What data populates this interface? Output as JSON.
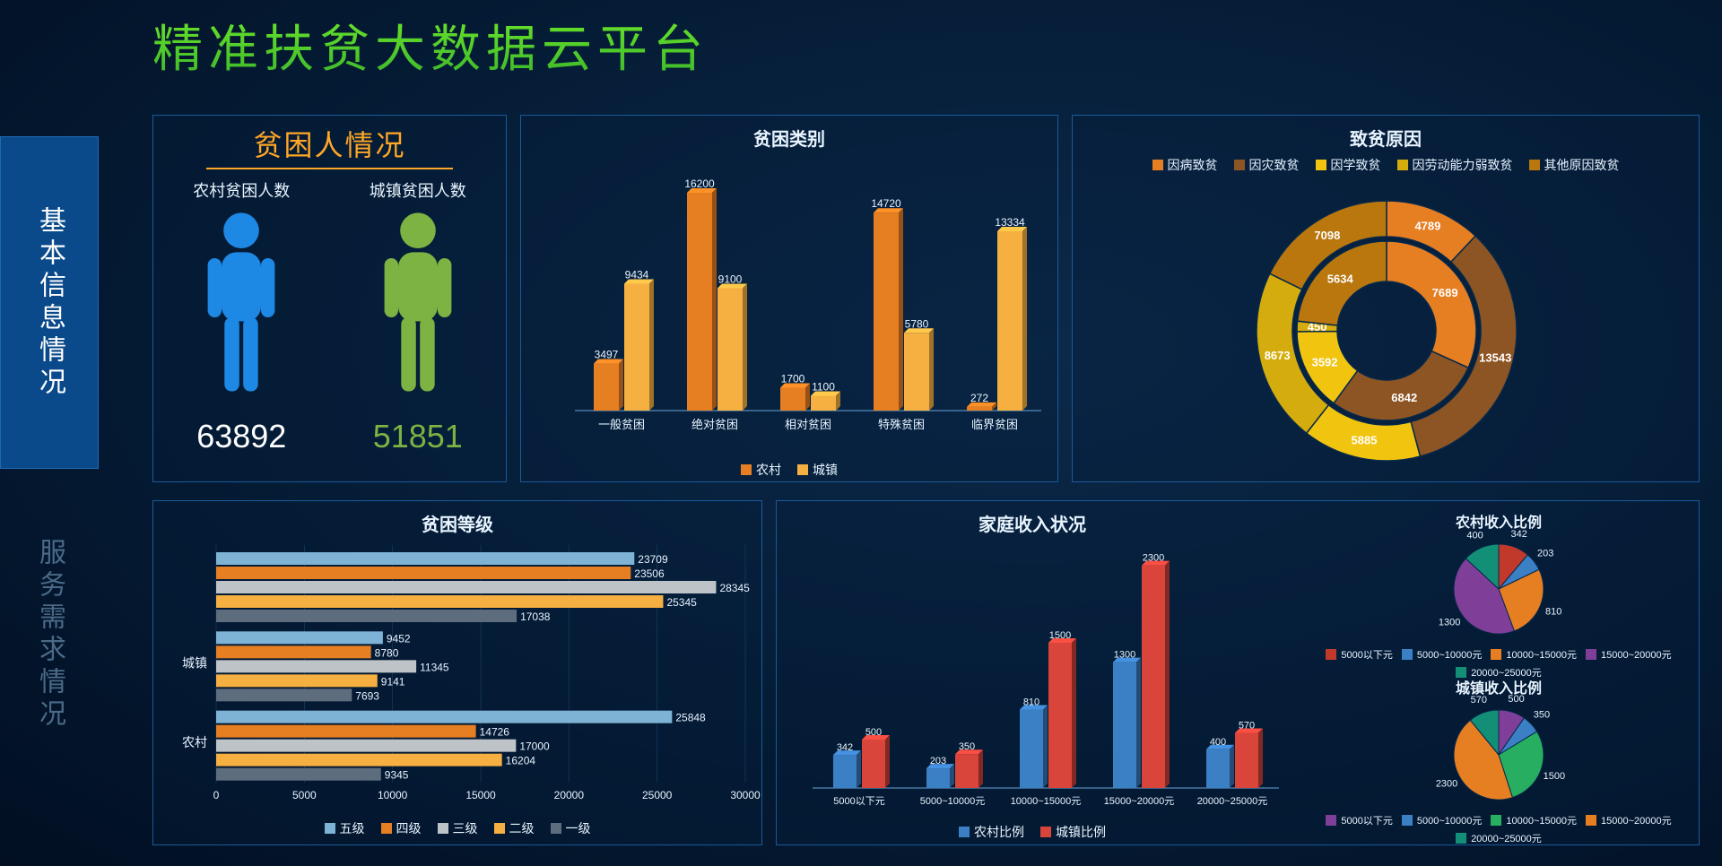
{
  "title": "精准扶贫大数据云平台",
  "sidebar": {
    "items": [
      {
        "label": "基本信息情况",
        "active": true
      },
      {
        "label": "服务需求情况",
        "active": false
      }
    ]
  },
  "population": {
    "title": "贫困人情况",
    "rural": {
      "label": "农村贫困人数",
      "value": 63892,
      "color": "#1e88e5",
      "text_color": "#ffffff"
    },
    "urban": {
      "label": "城镇贫困人数",
      "value": 51851,
      "color": "#7cb342",
      "text_color": "#7cb342"
    }
  },
  "category": {
    "title": "贫困类别",
    "type": "bar",
    "categories": [
      "一般贫困",
      "绝对贫困",
      "相对贫困",
      "特殊贫困",
      "临界贫困"
    ],
    "series": [
      {
        "name": "农村",
        "color": "#e67e22",
        "values": [
          3497,
          16200,
          1700,
          14720,
          272
        ]
      },
      {
        "name": "城镇",
        "color": "#f5b041",
        "values": [
          9434,
          9100,
          1100,
          5780,
          13334
        ]
      }
    ],
    "ymax": 18000,
    "label_fontsize": 12,
    "axis_color": "#6aa3d4",
    "text_color": "#e8f4ff"
  },
  "cause": {
    "title": "致贫原因",
    "type": "nested-donut",
    "categories": [
      "因病致贫",
      "因灾致贫",
      "因学致贫",
      "因劳动能力弱致贫",
      "其他原因致贫"
    ],
    "colors": [
      "#e67e22",
      "#8d5524",
      "#f1c40f",
      "#d4ac0d",
      "#b9770e"
    ],
    "inner": [
      7689,
      6842,
      3592,
      450,
      5634
    ],
    "outer": [
      4789,
      13543,
      5885,
      8673,
      7098
    ],
    "label_color": "#ffffff",
    "label_fontsize": 13
  },
  "level": {
    "title": "贫困等级",
    "type": "hbar",
    "groups": [
      "",
      "城镇",
      "农村"
    ],
    "series": [
      {
        "name": "五级",
        "color": "#7fb3d5"
      },
      {
        "name": "四级",
        "color": "#e67e22"
      },
      {
        "name": "三级",
        "color": "#bdc3c7"
      },
      {
        "name": "二级",
        "color": "#f5b041"
      },
      {
        "name": "一级",
        "color": "#5d6d7e"
      }
    ],
    "data": [
      [
        23709,
        23506,
        28345,
        25345,
        17038
      ],
      [
        9452,
        8780,
        11345,
        9141,
        7693
      ],
      [
        25848,
        14726,
        17000,
        16204,
        9345
      ]
    ],
    "xmax": 30000,
    "xstep": 5000,
    "axis_color": "#6aa3d4",
    "text_color": "#e8f4ff"
  },
  "income": {
    "title": "家庭收入状况",
    "type": "bar",
    "categories": [
      "5000以下元",
      "5000~10000元",
      "10000~15000元",
      "15000~20000元",
      "20000~25000元"
    ],
    "series": [
      {
        "name": "农村比例",
        "color": "#3b7fc4",
        "values": [
          342,
          203,
          810,
          1300,
          400
        ]
      },
      {
        "name": "城镇比例",
        "color": "#d9453a",
        "values": [
          500,
          350,
          1500,
          2300,
          570
        ]
      }
    ],
    "ymax": 2500,
    "axis_color": "#6aa3d4",
    "text_color": "#e8f4ff",
    "pies": [
      {
        "title": "农村收入比例",
        "labels": [
          "5000以下元",
          "5000~10000元",
          "10000~15000元",
          "15000~20000元",
          "20000~25000元"
        ],
        "values": [
          342,
          203,
          810,
          1300,
          400
        ],
        "colors": [
          "#c0392b",
          "#3b7fc4",
          "#e67e22",
          "#7f3f98",
          "#148f77"
        ]
      },
      {
        "title": "城镇收入比例",
        "labels": [
          "5000以下元",
          "5000~10000元",
          "10000~15000元",
          "15000~20000元",
          "20000~25000元"
        ],
        "values": [
          500,
          350,
          1500,
          2300,
          570
        ],
        "colors": [
          "#7f3f98",
          "#3b7fc4",
          "#27ae60",
          "#e67e22",
          "#148f77"
        ]
      }
    ]
  }
}
